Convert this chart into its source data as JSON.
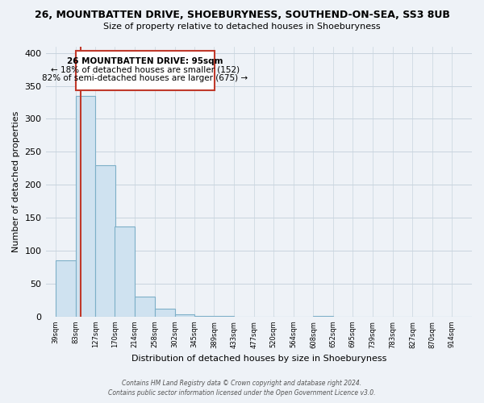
{
  "title": "26, MOUNTBATTEN DRIVE, SHOEBURYNESS, SOUTHEND-ON-SEA, SS3 8UB",
  "subtitle": "Size of property relative to detached houses in Shoeburyness",
  "xlabel": "Distribution of detached houses by size in Shoeburyness",
  "ylabel": "Number of detached properties",
  "bar_edges": [
    39,
    83,
    127,
    170,
    214,
    258,
    302,
    345,
    389,
    433,
    477,
    520,
    564,
    608,
    652,
    695,
    739,
    783,
    827,
    870,
    914
  ],
  "bar_heights": [
    85,
    335,
    230,
    137,
    30,
    12,
    3,
    1,
    1,
    0,
    0,
    0,
    0,
    1,
    0,
    0,
    0,
    0,
    0,
    0,
    0
  ],
  "property_size_x": 95,
  "bar_color_face": "#cfe2f0",
  "bar_color_edge": "#7dafc8",
  "marker_line_color": "#c0392b",
  "annotation_box_facecolor": "#ffffff",
  "annotation_border_color": "#c0392b",
  "annotation_text_line1": "26 MOUNTBATTEN DRIVE: 95sqm",
  "annotation_text_line2": "← 18% of detached houses are smaller (152)",
  "annotation_text_line3": "82% of semi-detached houses are larger (675) →",
  "tick_labels": [
    "39sqm",
    "83sqm",
    "127sqm",
    "170sqm",
    "214sqm",
    "258sqm",
    "302sqm",
    "345sqm",
    "389sqm",
    "433sqm",
    "477sqm",
    "520sqm",
    "564sqm",
    "608sqm",
    "652sqm",
    "695sqm",
    "739sqm",
    "783sqm",
    "827sqm",
    "870sqm",
    "914sqm"
  ],
  "xlim_left": 17,
  "xlim_right": 958,
  "ylim": [
    0,
    410
  ],
  "yticks": [
    0,
    50,
    100,
    150,
    200,
    250,
    300,
    350,
    400
  ],
  "footer_line1": "Contains HM Land Registry data © Crown copyright and database right 2024.",
  "footer_line2": "Contains public sector information licensed under the Open Government Licence v3.0.",
  "bg_color": "#eef2f7",
  "plot_bg_color": "#eef2f7"
}
